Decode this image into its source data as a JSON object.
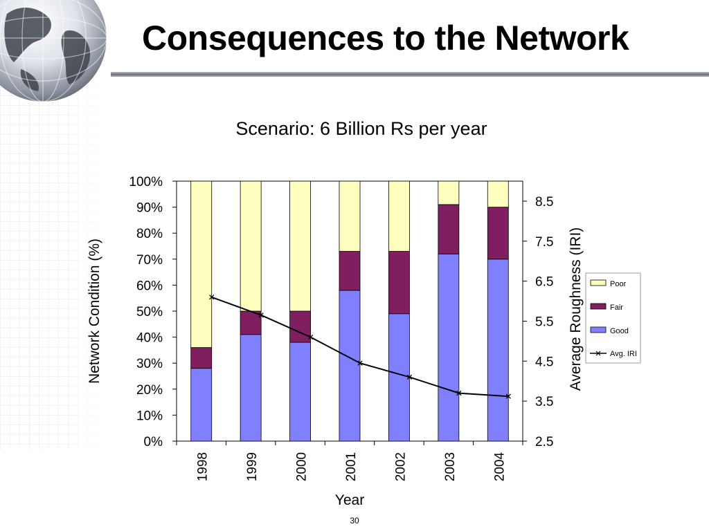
{
  "slide": {
    "title": "Consequences to the Network",
    "page_number": "30"
  },
  "colors": {
    "poor": "#FFFFC0",
    "fair": "#7F1F5F",
    "good": "#8080FF",
    "line": "#000000"
  },
  "chart_data": {
    "type": "bar",
    "stacked": true,
    "title": "Scenario: 6 Billion Rs per year",
    "xlabel": "Year",
    "ylabel": "Network Condition (%)",
    "y2label": "Average Roughness (IRI)",
    "categories": [
      "1998",
      "1999",
      "2000",
      "2001",
      "2002",
      "2003",
      "2004"
    ],
    "series": [
      {
        "name": "Good",
        "type": "bar",
        "axis": "left",
        "values": [
          28,
          41,
          38,
          58,
          49,
          72,
          70
        ]
      },
      {
        "name": "Fair",
        "type": "bar",
        "axis": "left",
        "values": [
          8,
          9,
          12,
          15,
          24,
          19,
          20
        ]
      },
      {
        "name": "Poor",
        "type": "bar",
        "axis": "left",
        "values": [
          64,
          50,
          50,
          27,
          27,
          9,
          10
        ]
      },
      {
        "name": "Avg. IRI",
        "type": "line",
        "axis": "right",
        "values": [
          6.1,
          5.65,
          5.1,
          4.45,
          4.1,
          3.7,
          3.62
        ]
      }
    ],
    "ylim": [
      0,
      100
    ],
    "y_ticks": [
      "0%",
      "10%",
      "20%",
      "30%",
      "40%",
      "50%",
      "60%",
      "70%",
      "80%",
      "90%",
      "100%"
    ],
    "y2lim": [
      2.5,
      9.0
    ],
    "y2_ticks": [
      "2.5",
      "3.5",
      "4.5",
      "5.5",
      "6.5",
      "7.5",
      "8.5"
    ],
    "legend": [
      "Poor",
      "Fair",
      "Good",
      "Avg. IRI"
    ],
    "legend_position": "right",
    "grid": false
  }
}
